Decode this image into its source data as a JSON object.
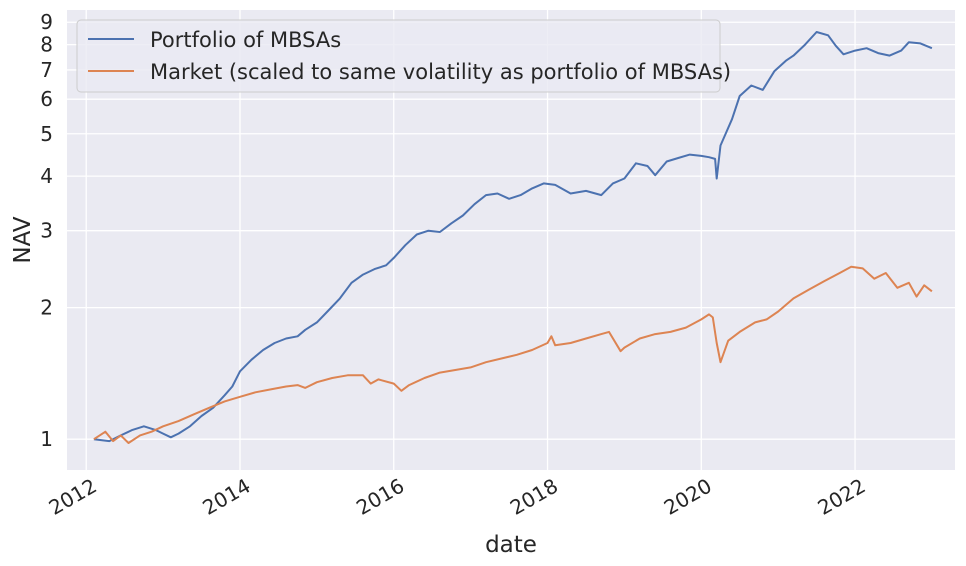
{
  "chart_data": {
    "type": "line",
    "xlabel": "date",
    "ylabel": "NAV",
    "y_scale": "log",
    "x_range_years": [
      2011.75,
      2023.3
    ],
    "ylim": [
      0.85,
      9.6
    ],
    "x_ticks": [
      "2012",
      "2014",
      "2016",
      "2018",
      "2020",
      "2022"
    ],
    "y_ticks": [
      {
        "value": 1,
        "label": "1"
      },
      {
        "value": 2,
        "label": "2"
      },
      {
        "value": 3,
        "label": "3"
      },
      {
        "value": 4,
        "label": "4"
      },
      {
        "value": 5,
        "label": "5"
      },
      {
        "value": 6,
        "label": "6"
      },
      {
        "value": 7,
        "label": "7"
      },
      {
        "value": 8,
        "label": "8"
      },
      {
        "value": 9,
        "label": "9"
      }
    ],
    "grid": true,
    "legend_position": "top-left",
    "series": [
      {
        "name": "Portfolio of MBSAs",
        "color": "#4c72b0",
        "points": [
          [
            2012.1,
            1.0
          ],
          [
            2012.3,
            0.99
          ],
          [
            2012.45,
            1.02
          ],
          [
            2012.6,
            1.05
          ],
          [
            2012.75,
            1.07
          ],
          [
            2012.9,
            1.05
          ],
          [
            2013.0,
            1.03
          ],
          [
            2013.1,
            1.01
          ],
          [
            2013.2,
            1.03
          ],
          [
            2013.35,
            1.07
          ],
          [
            2013.5,
            1.13
          ],
          [
            2013.65,
            1.18
          ],
          [
            2013.8,
            1.26
          ],
          [
            2013.9,
            1.32
          ],
          [
            2014.0,
            1.43
          ],
          [
            2014.15,
            1.52
          ],
          [
            2014.3,
            1.6
          ],
          [
            2014.45,
            1.66
          ],
          [
            2014.6,
            1.7
          ],
          [
            2014.75,
            1.72
          ],
          [
            2014.85,
            1.78
          ],
          [
            2015.0,
            1.85
          ],
          [
            2015.15,
            1.97
          ],
          [
            2015.3,
            2.1
          ],
          [
            2015.45,
            2.28
          ],
          [
            2015.6,
            2.38
          ],
          [
            2015.75,
            2.45
          ],
          [
            2015.9,
            2.5
          ],
          [
            2016.0,
            2.6
          ],
          [
            2016.15,
            2.78
          ],
          [
            2016.3,
            2.94
          ],
          [
            2016.45,
            3.0
          ],
          [
            2016.6,
            2.98
          ],
          [
            2016.75,
            3.12
          ],
          [
            2016.9,
            3.25
          ],
          [
            2017.05,
            3.45
          ],
          [
            2017.2,
            3.62
          ],
          [
            2017.35,
            3.65
          ],
          [
            2017.5,
            3.55
          ],
          [
            2017.65,
            3.62
          ],
          [
            2017.8,
            3.75
          ],
          [
            2017.95,
            3.85
          ],
          [
            2018.1,
            3.82
          ],
          [
            2018.3,
            3.65
          ],
          [
            2018.5,
            3.7
          ],
          [
            2018.7,
            3.62
          ],
          [
            2018.85,
            3.85
          ],
          [
            2019.0,
            3.95
          ],
          [
            2019.15,
            4.28
          ],
          [
            2019.3,
            4.22
          ],
          [
            2019.4,
            4.02
          ],
          [
            2019.55,
            4.32
          ],
          [
            2019.7,
            4.4
          ],
          [
            2019.85,
            4.48
          ],
          [
            2020.0,
            4.45
          ],
          [
            2020.1,
            4.42
          ],
          [
            2020.18,
            4.38
          ],
          [
            2020.2,
            3.95
          ],
          [
            2020.25,
            4.7
          ],
          [
            2020.4,
            5.4
          ],
          [
            2020.5,
            6.1
          ],
          [
            2020.65,
            6.45
          ],
          [
            2020.8,
            6.3
          ],
          [
            2020.95,
            6.95
          ],
          [
            2021.1,
            7.35
          ],
          [
            2021.2,
            7.55
          ],
          [
            2021.35,
            8.0
          ],
          [
            2021.5,
            8.55
          ],
          [
            2021.65,
            8.4
          ],
          [
            2021.75,
            7.95
          ],
          [
            2021.85,
            7.6
          ],
          [
            2022.0,
            7.75
          ],
          [
            2022.15,
            7.85
          ],
          [
            2022.3,
            7.65
          ],
          [
            2022.45,
            7.55
          ],
          [
            2022.6,
            7.75
          ],
          [
            2022.7,
            8.1
          ],
          [
            2022.85,
            8.05
          ],
          [
            2023.0,
            7.85
          ]
        ]
      },
      {
        "name": "Market (scaled to same volatility as portfolio of MBSAs)",
        "color": "#dd8452",
        "points": [
          [
            2012.1,
            1.0
          ],
          [
            2012.25,
            1.04
          ],
          [
            2012.35,
            0.99
          ],
          [
            2012.45,
            1.02
          ],
          [
            2012.55,
            0.98
          ],
          [
            2012.7,
            1.02
          ],
          [
            2012.85,
            1.04
          ],
          [
            2013.0,
            1.07
          ],
          [
            2013.2,
            1.1
          ],
          [
            2013.4,
            1.14
          ],
          [
            2013.6,
            1.18
          ],
          [
            2013.8,
            1.22
          ],
          [
            2014.0,
            1.25
          ],
          [
            2014.2,
            1.28
          ],
          [
            2014.4,
            1.3
          ],
          [
            2014.6,
            1.32
          ],
          [
            2014.75,
            1.33
          ],
          [
            2014.85,
            1.31
          ],
          [
            2015.0,
            1.35
          ],
          [
            2015.2,
            1.38
          ],
          [
            2015.4,
            1.4
          ],
          [
            2015.6,
            1.4
          ],
          [
            2015.7,
            1.34
          ],
          [
            2015.8,
            1.37
          ],
          [
            2016.0,
            1.34
          ],
          [
            2016.1,
            1.29
          ],
          [
            2016.2,
            1.33
          ],
          [
            2016.4,
            1.38
          ],
          [
            2016.6,
            1.42
          ],
          [
            2016.8,
            1.44
          ],
          [
            2017.0,
            1.46
          ],
          [
            2017.2,
            1.5
          ],
          [
            2017.4,
            1.53
          ],
          [
            2017.6,
            1.56
          ],
          [
            2017.8,
            1.6
          ],
          [
            2018.0,
            1.66
          ],
          [
            2018.05,
            1.72
          ],
          [
            2018.1,
            1.64
          ],
          [
            2018.3,
            1.66
          ],
          [
            2018.5,
            1.7
          ],
          [
            2018.7,
            1.74
          ],
          [
            2018.8,
            1.76
          ],
          [
            2018.95,
            1.59
          ],
          [
            2019.0,
            1.62
          ],
          [
            2019.2,
            1.7
          ],
          [
            2019.4,
            1.74
          ],
          [
            2019.6,
            1.76
          ],
          [
            2019.8,
            1.8
          ],
          [
            2020.0,
            1.88
          ],
          [
            2020.1,
            1.93
          ],
          [
            2020.15,
            1.9
          ],
          [
            2020.2,
            1.66
          ],
          [
            2020.25,
            1.5
          ],
          [
            2020.35,
            1.68
          ],
          [
            2020.5,
            1.76
          ],
          [
            2020.7,
            1.85
          ],
          [
            2020.85,
            1.88
          ],
          [
            2021.0,
            1.96
          ],
          [
            2021.2,
            2.1
          ],
          [
            2021.4,
            2.2
          ],
          [
            2021.6,
            2.3
          ],
          [
            2021.8,
            2.4
          ],
          [
            2021.95,
            2.48
          ],
          [
            2022.1,
            2.46
          ],
          [
            2022.25,
            2.33
          ],
          [
            2022.4,
            2.4
          ],
          [
            2022.55,
            2.22
          ],
          [
            2022.7,
            2.28
          ],
          [
            2022.8,
            2.12
          ],
          [
            2022.9,
            2.25
          ],
          [
            2023.0,
            2.18
          ]
        ]
      }
    ]
  }
}
